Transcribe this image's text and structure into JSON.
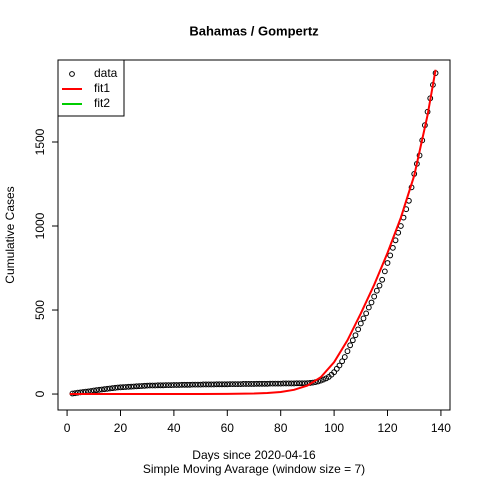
{
  "chart_data": {
    "type": "scatter",
    "title": "Bahamas / Gompertz",
    "x_label": "Days since 2020-04-16",
    "subtitle": "Simple Moving Avarage (window size = 7)",
    "y_label": "Cumulative Cases",
    "xlim": [
      -3.4,
      143.4
    ],
    "ylim": [
      -95,
      1988
    ],
    "xticks": [
      0,
      20,
      40,
      60,
      80,
      100,
      120,
      140
    ],
    "yticks": [
      0,
      500,
      1000,
      1500
    ],
    "legend_position": "top-left",
    "series": [
      {
        "name": "data",
        "color": "#000000",
        "kind": "points",
        "x": [
          2,
          3,
          4,
          5,
          6,
          7,
          8,
          9,
          10,
          11,
          12,
          13,
          14,
          15,
          16,
          17,
          18,
          19,
          20,
          21,
          22,
          23,
          24,
          25,
          26,
          27,
          28,
          29,
          30,
          31,
          32,
          33,
          34,
          35,
          36,
          37,
          38,
          39,
          40,
          41,
          42,
          43,
          44,
          45,
          46,
          47,
          48,
          49,
          50,
          51,
          52,
          53,
          54,
          55,
          56,
          57,
          58,
          59,
          60,
          61,
          62,
          63,
          64,
          65,
          66,
          67,
          68,
          69,
          70,
          71,
          72,
          73,
          74,
          75,
          76,
          77,
          78,
          79,
          80,
          81,
          82,
          83,
          84,
          85,
          86,
          87,
          88,
          89,
          90,
          91,
          92,
          93,
          94,
          95,
          96,
          97,
          98,
          99,
          100,
          101,
          102,
          103,
          104,
          105,
          106,
          107,
          108,
          109,
          110,
          111,
          112,
          113,
          114,
          115,
          116,
          117,
          118,
          119,
          120,
          121,
          122,
          123,
          124,
          125,
          126,
          127,
          128,
          129,
          130,
          131,
          132,
          133,
          134,
          135,
          136,
          137,
          138
        ],
        "values": [
          3,
          5,
          8,
          10,
          12,
          14,
          16,
          18,
          21,
          23,
          25,
          27,
          29,
          31,
          33,
          35,
          37,
          39,
          40,
          41,
          42,
          43,
          44,
          45,
          46,
          47,
          48,
          49,
          50,
          51,
          51,
          51,
          52,
          52,
          52,
          53,
          53,
          53,
          54,
          54,
          54,
          55,
          55,
          55,
          55,
          56,
          56,
          56,
          56,
          57,
          57,
          57,
          57,
          57,
          58,
          58,
          58,
          58,
          58,
          59,
          59,
          59,
          59,
          59,
          60,
          60,
          60,
          60,
          60,
          61,
          61,
          61,
          61,
          61,
          62,
          62,
          62,
          62,
          62,
          63,
          63,
          63,
          63,
          63,
          64,
          64,
          64,
          64,
          65,
          66,
          68,
          71,
          75,
          80,
          86,
          93,
          102,
          115,
          130,
          150,
          170,
          195,
          220,
          255,
          290,
          320,
          350,
          385,
          420,
          450,
          480,
          515,
          545,
          580,
          615,
          645,
          680,
          730,
          780,
          825,
          870,
          915,
          960,
          1000,
          1050,
          1100,
          1150,
          1230,
          1310,
          1370,
          1420,
          1510,
          1600,
          1680,
          1760,
          1840,
          1910
        ]
      },
      {
        "name": "fit1",
        "color": "#ff0000",
        "kind": "line",
        "x": [
          1,
          10,
          20,
          30,
          40,
          50,
          60,
          70,
          75,
          80,
          85,
          90,
          95,
          100,
          105,
          110,
          115,
          120,
          125,
          130,
          135,
          138
        ],
        "values": [
          0,
          0,
          0,
          0,
          0,
          0,
          1,
          3,
          6,
          12,
          25,
          50,
          100,
          190,
          320,
          480,
          650,
          840,
          1050,
          1300,
          1660,
          1930
        ]
      },
      {
        "name": "fit2",
        "color": "#00cd00",
        "kind": "line"
      }
    ]
  }
}
